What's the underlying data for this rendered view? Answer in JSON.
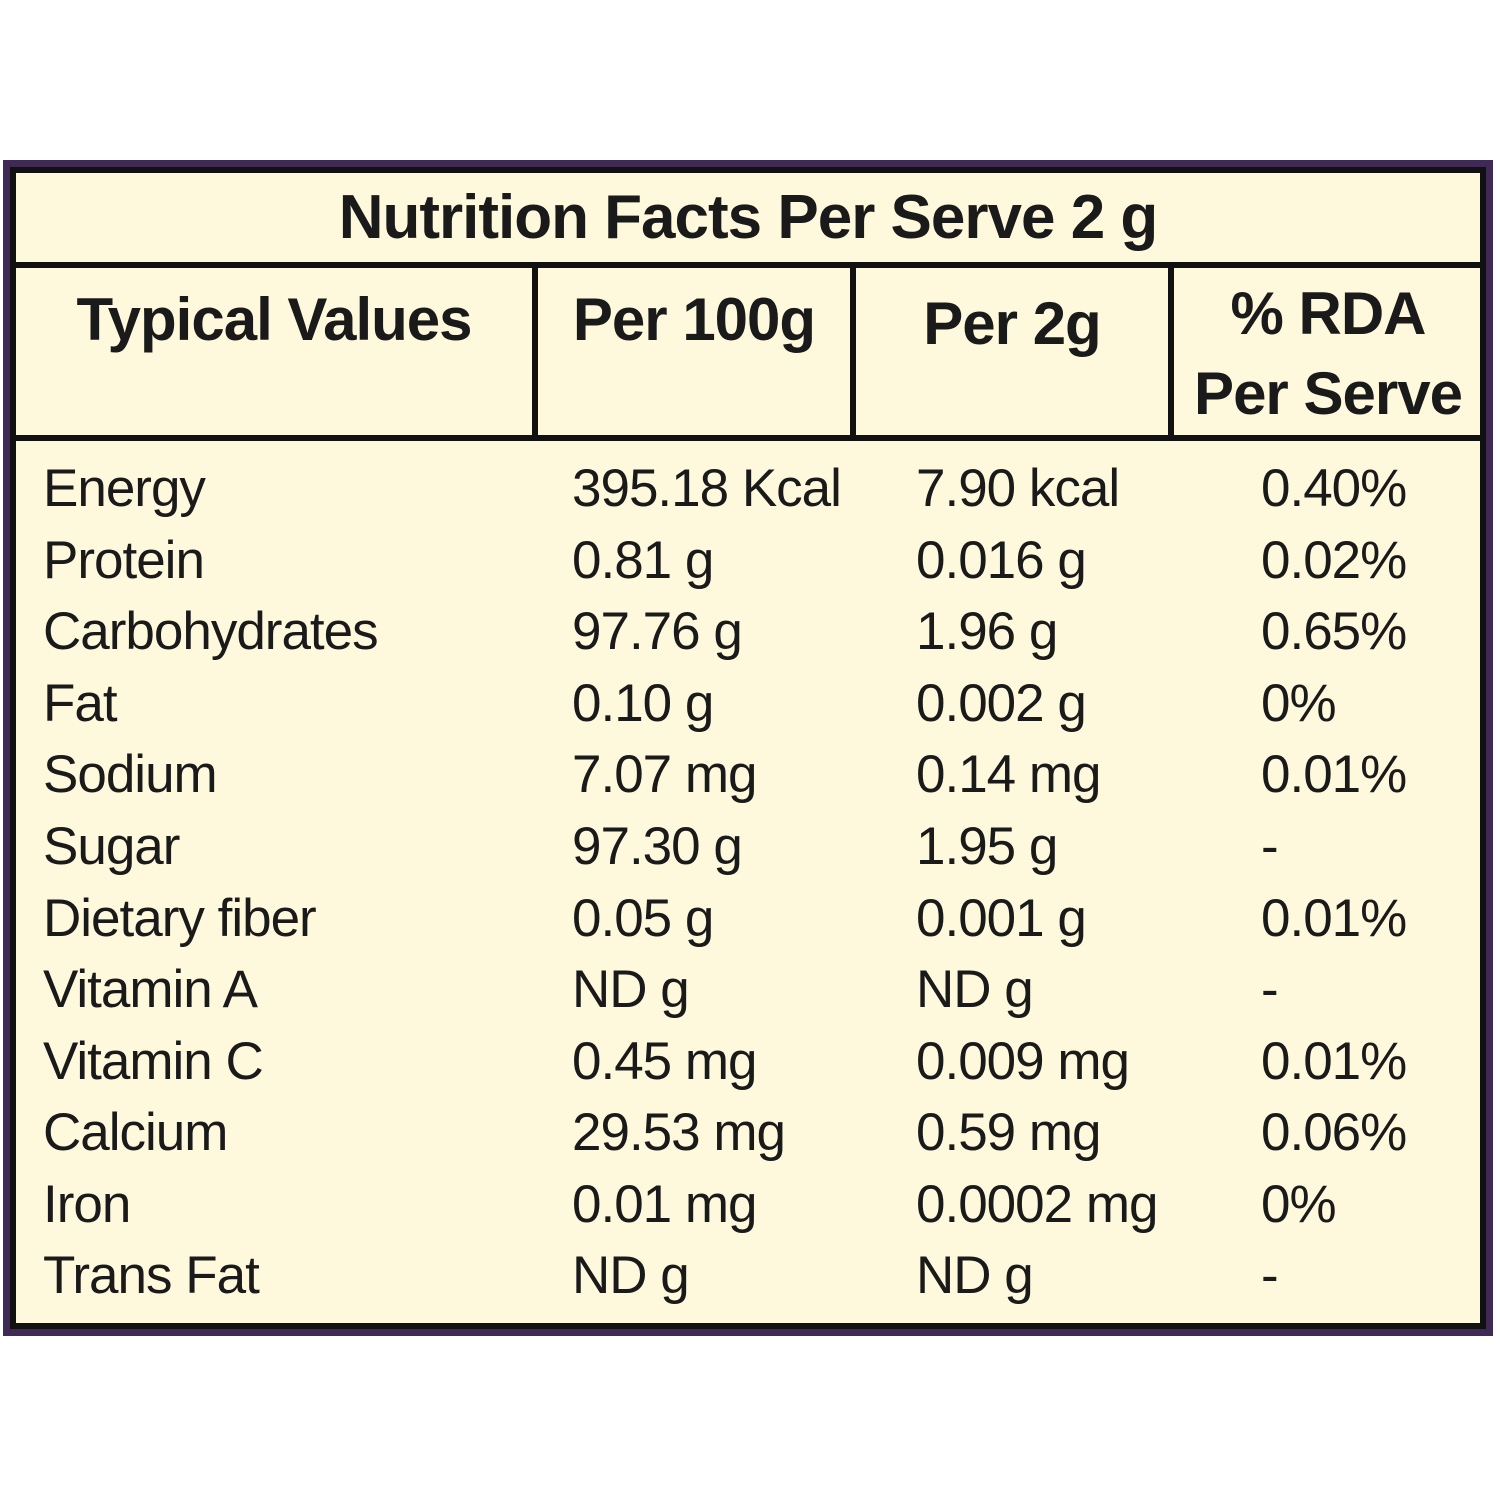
{
  "title": "Nutrition Facts Per Serve 2 g",
  "headers": {
    "typical": "Typical Values",
    "per100": "Per 100g",
    "per2": "Per 2g",
    "rda_line1": "% RDA",
    "rda_line2": "Per Serve"
  },
  "rows": [
    {
      "name": "Energy",
      "per100": "395.18 Kcal",
      "per2": "7.90 kcal",
      "rda": "0.40%"
    },
    {
      "name": "Protein",
      "per100": "0.81 g",
      "per2": "0.016 g",
      "rda": "0.02%"
    },
    {
      "name": "Carbohydrates",
      "per100": "97.76 g",
      "per2": "1.96 g",
      "rda": "0.65%"
    },
    {
      "name": "Fat",
      "per100": "0.10 g",
      "per2": "0.002 g",
      "rda": "0%"
    },
    {
      "name": "Sodium",
      "per100": "7.07 mg",
      "per2": "0.14 mg",
      "rda": "0.01%"
    },
    {
      "name": "Sugar",
      "per100": "97.30 g",
      "per2": "1.95 g",
      "rda": "-"
    },
    {
      "name": "Dietary fiber",
      "per100": "0.05 g",
      "per2": "0.001 g",
      "rda": "0.01%"
    },
    {
      "name": "Vitamin A",
      "per100": "ND g",
      "per2": "ND g",
      "rda": "-"
    },
    {
      "name": "Vitamin C",
      "per100": "0.45 mg",
      "per2": "0.009 mg",
      "rda": "0.01%"
    },
    {
      "name": "Calcium",
      "per100": "29.53 mg",
      "per2": "0.59 mg",
      "rda": "0.06%"
    },
    {
      "name": "Iron",
      "per100": "0.01 mg",
      "per2": "0.0002 mg",
      "rda": "0%"
    },
    {
      "name": "Trans Fat",
      "per100": "ND g",
      "per2": "ND g",
      "rda": "-"
    }
  ],
  "colors": {
    "frame": "#3e2a55",
    "background": "#fef9dc",
    "rule": "#111111",
    "text": "#1a1a1a"
  }
}
